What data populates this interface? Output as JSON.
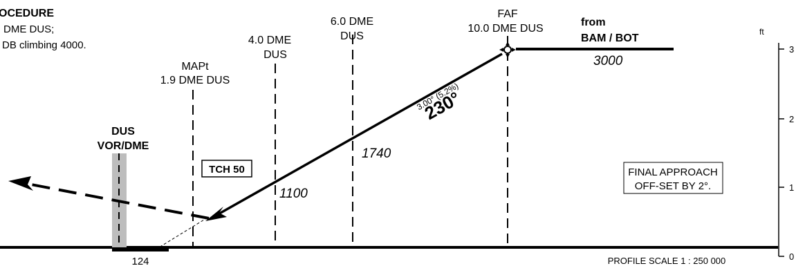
{
  "procedure": {
    "title_fragment": "OCEDURE",
    "line1": "DME DUS;",
    "line2": "DB climbing 4000."
  },
  "fixes": {
    "faf": {
      "name": "FAF",
      "dme": "10.0 DME DUS"
    },
    "dme6": {
      "line1": "6.0 DME",
      "line2": "DUS"
    },
    "dme4": {
      "line1": "4.0 DME",
      "line2": "DUS"
    },
    "mapt": {
      "name": "MAPt",
      "dme": "1.9 DME DUS"
    }
  },
  "from": {
    "label": "from",
    "route": "BAM / BOT",
    "altitude": "3000"
  },
  "glidepath": {
    "angle": "3.00°",
    "gradient": "(5.2%)",
    "course": "230°"
  },
  "altitudes": {
    "at_6dme": "1740",
    "at_4dme": "1100"
  },
  "station": {
    "line1": "DUS",
    "line2": "VOR/DME"
  },
  "tch": "TCH 50",
  "runway_elevation": "124",
  "note": {
    "line1": "FINAL APPROACH",
    "line2": "OFF-SET BY 2°."
  },
  "scale": "PROFILE SCALE 1 : 250 000",
  "ruler": {
    "unit": "ft",
    "marks": [
      "3",
      "2",
      "1",
      "0"
    ]
  },
  "colors": {
    "ink": "#000000",
    "station_bar": "#bdbdbd"
  }
}
